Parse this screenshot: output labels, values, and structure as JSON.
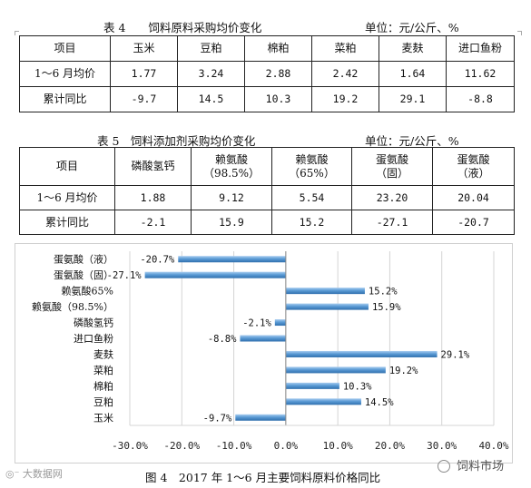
{
  "table4": {
    "title": "表 4　　饲料原料采购均价变化",
    "unit": "单位：元/公斤、%",
    "headers": [
      "项目",
      "玉米",
      "豆粕",
      "棉粕",
      "菜粕",
      "麦麸",
      "进口鱼粉"
    ],
    "rows": [
      [
        "1～6 月均价",
        "1.77",
        "3.24",
        "2.88",
        "2.42",
        "1.64",
        "11.62"
      ],
      [
        "累计同比",
        "-9.7",
        "14.5",
        "10.3",
        "19.2",
        "29.1",
        "-8.8"
      ]
    ]
  },
  "table5": {
    "title": "表 5　饲料添加剂采购均价变化",
    "unit": "单位：元/公斤、%",
    "headers": [
      {
        "line1": "项目",
        "line2": ""
      },
      {
        "line1": "磷酸氢钙",
        "line2": ""
      },
      {
        "line1": "赖氨酸",
        "line2": "（98.5%）"
      },
      {
        "line1": "赖氨酸",
        "line2": "（65%）"
      },
      {
        "line1": "蛋氨酸",
        "line2": "（固）"
      },
      {
        "line1": "蛋氨酸",
        "line2": "（液）"
      }
    ],
    "rows": [
      [
        "1～6 月均价",
        "1.88",
        "9.12",
        "5.54",
        "23.20",
        "20.04"
      ],
      [
        "累计同比",
        "-2.1",
        "15.9",
        "15.2",
        "-27.1",
        "-20.7"
      ]
    ]
  },
  "chart_data": {
    "type": "bar",
    "orientation": "horizontal",
    "categories": [
      "蛋氨酸（液）",
      "蛋氨酸（固）",
      "赖氨酸65%",
      "赖氨酸（98.5%）",
      "磷酸氢钙",
      "进口鱼粉",
      "麦麸",
      "菜粕",
      "棉粕",
      "豆粕",
      "玉米"
    ],
    "values": [
      -20.7,
      -27.1,
      15.2,
      15.9,
      -2.1,
      -8.8,
      29.1,
      19.2,
      10.3,
      14.5,
      -9.7
    ],
    "data_labels": [
      "-20.7%",
      "-27.1%",
      "15.2%",
      "15.9%",
      "-2.1%",
      "-8.8%",
      "29.1%",
      "19.2%",
      "10.3%",
      "14.5%",
      "-9.7%"
    ],
    "xlim": [
      -30,
      40
    ],
    "x_ticks": [
      -30,
      -20,
      -10,
      0,
      10,
      20,
      30,
      40
    ],
    "x_tick_labels": [
      "-30.0%",
      "-20.0%",
      "-10.0%",
      "0.0%",
      "10.0%",
      "20.0%",
      "30.0%",
      "40.0%"
    ],
    "grid": true,
    "bar_color": "#5b9bd5"
  },
  "figure_caption": "图 4　2017 年 1～6 月主要饲料原料价格同比",
  "watermark_left": "大数据网",
  "watermark_right": "饲料市场"
}
